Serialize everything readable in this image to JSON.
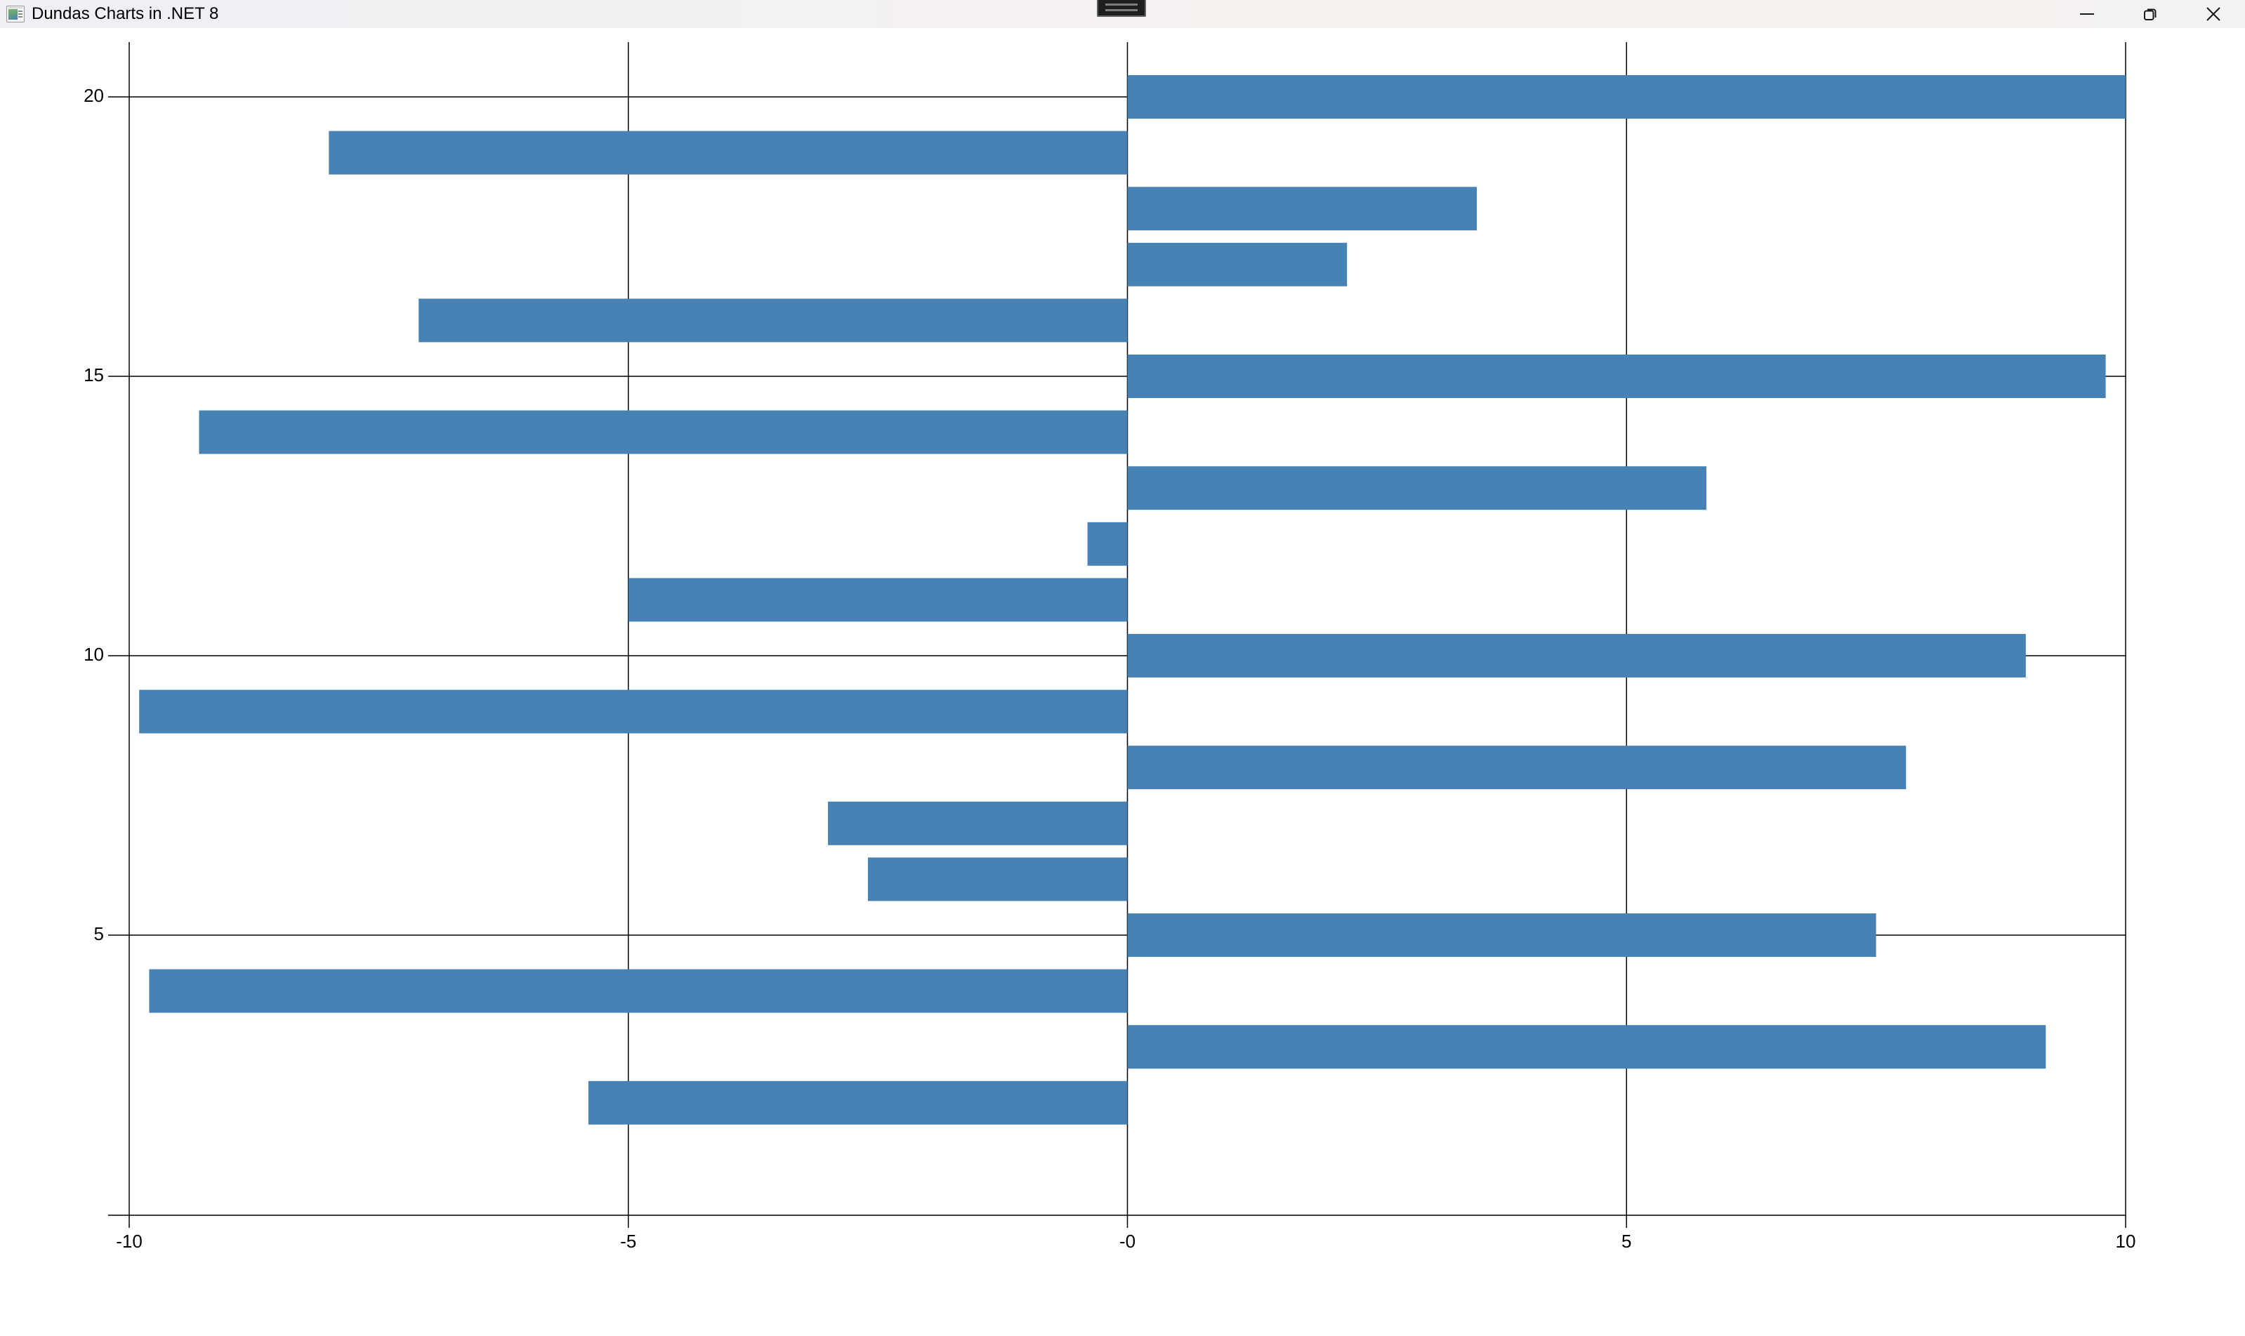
{
  "window": {
    "title": "Dundas Charts in .NET 8",
    "app_icon": "chart-window-icon",
    "overlay_indicator_icon": "screen-share-pill-icon",
    "controls": [
      {
        "icon": "minimize-icon",
        "name": "minimize"
      },
      {
        "icon": "restore-icon",
        "name": "restore"
      },
      {
        "icon": "close-icon",
        "name": "close"
      }
    ]
  },
  "chart_data": {
    "type": "bar",
    "orientation": "horizontal",
    "title": "",
    "legend": false,
    "grid": true,
    "bar_color": "#4682B4",
    "axis_color": "#000000",
    "categories": [
      1,
      2,
      3,
      4,
      5,
      6,
      7,
      8,
      9,
      10,
      11,
      12,
      13,
      14,
      15,
      16,
      17,
      18,
      19,
      20
    ],
    "values": [
      0,
      -5.4,
      9.2,
      -9.8,
      7.5,
      -2.6,
      -3.0,
      7.8,
      -9.9,
      9.0,
      -5.0,
      -0.4,
      5.8,
      -9.3,
      9.8,
      -7.1,
      2.2,
      3.5,
      -8.0,
      10.0
    ],
    "x_axis": {
      "min": -10,
      "max": 10,
      "tick_values": [
        -10,
        -5,
        0,
        5,
        10
      ],
      "tick_labels": [
        "-10",
        "-5",
        "-0",
        "5",
        "10"
      ]
    },
    "y_axis": {
      "min": 1,
      "max": 20,
      "tick_values": [
        5,
        10,
        15,
        20
      ],
      "tick_labels": [
        "5",
        "10",
        "15",
        "20"
      ]
    }
  }
}
